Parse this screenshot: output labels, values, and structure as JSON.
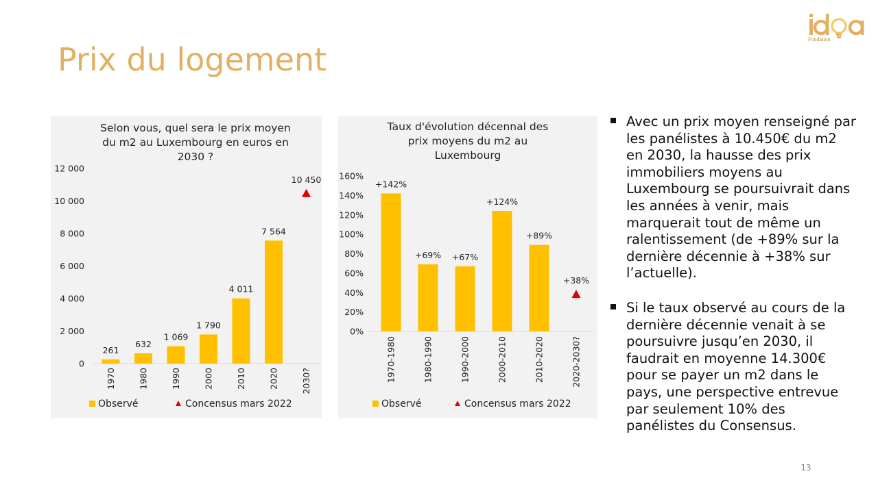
{
  "slide": {
    "title": "Prix du logement",
    "page_number": "13",
    "logo": {
      "word": "idea",
      "subtitle": "Fondation"
    }
  },
  "colors": {
    "bar": "#FFC000",
    "marker": "#E00000",
    "title": "#E1B063",
    "panel": "#F2F2F2"
  },
  "bullets": [
    "Avec un prix moyen renseigné par les panélistes à 10.450€ du m2 en 2030, la hausse des prix immobiliers moyens au Luxembourg se poursuivrait dans les années à venir, mais marquerait tout de même un ralentissement (de +89% sur la dernière décennie à +38% sur l’actuelle).",
    "Si le taux observé au cours de la dernière décennie venait à se poursuivre jusqu’en 2030, il faudrait en moyenne 14.300€ pour se payer un m2 dans le pays, une perspective entrevue par seulement 10% des panélistes du Consensus."
  ],
  "chart_data": [
    {
      "type": "bar",
      "title_lines": [
        "Selon vous, quel sera le prix moyen",
        "du m2 au Luxembourg en euros en",
        "2030 ?"
      ],
      "categories": [
        "1970",
        "1980",
        "1990",
        "2000",
        "2010",
        "2020",
        "2030?"
      ],
      "series": [
        {
          "name": "Observé",
          "kind": "bar",
          "values": [
            261,
            632,
            1069,
            1790,
            4011,
            7564,
            null
          ],
          "labels": [
            "261",
            "632",
            "1 069",
            "1 790",
            "4 011",
            "7 564",
            ""
          ]
        },
        {
          "name": "Concensus mars 2022",
          "kind": "marker",
          "values": [
            null,
            null,
            null,
            null,
            null,
            null,
            10450
          ],
          "labels": [
            "",
            "",
            "",
            "",
            "",
            "",
            "10 450"
          ]
        }
      ],
      "ylim": [
        0,
        12000
      ],
      "yticks": [
        {
          "value": 0,
          "label": "0"
        },
        {
          "value": 2000,
          "label": "2 000"
        },
        {
          "value": 4000,
          "label": "4 000"
        },
        {
          "value": 6000,
          "label": "6 000"
        },
        {
          "value": 8000,
          "label": "8 000"
        },
        {
          "value": 10000,
          "label": "10 000"
        },
        {
          "value": 12000,
          "label": "12 000"
        }
      ],
      "legend": [
        "Observé",
        "Concensus mars 2022"
      ],
      "legend_position": "bottom",
      "grid": false
    },
    {
      "type": "bar",
      "title_lines": [
        "Taux d'évolution décennal des",
        "prix moyens du m2 au",
        "Luxembourg"
      ],
      "categories": [
        "1970-1980",
        "1980-1990",
        "1990-2000",
        "2000-2010",
        "2010-2020",
        "2020-2030?"
      ],
      "series": [
        {
          "name": "Observé",
          "kind": "bar",
          "values": [
            142,
            69,
            67,
            124,
            89,
            null
          ],
          "labels": [
            "+142%",
            "+69%",
            "+67%",
            "+124%",
            "+89%",
            ""
          ]
        },
        {
          "name": "Concensus mars 2022",
          "kind": "marker",
          "values": [
            null,
            null,
            null,
            null,
            null,
            38
          ],
          "labels": [
            "",
            "",
            "",
            "",
            "",
            "+38%"
          ]
        }
      ],
      "ylim": [
        0,
        160
      ],
      "yticks": [
        {
          "value": 0,
          "label": "0%"
        },
        {
          "value": 20,
          "label": "20%"
        },
        {
          "value": 40,
          "label": "40%"
        },
        {
          "value": 60,
          "label": "60%"
        },
        {
          "value": 80,
          "label": "80%"
        },
        {
          "value": 100,
          "label": "100%"
        },
        {
          "value": 120,
          "label": "120%"
        },
        {
          "value": 140,
          "label": "140%"
        },
        {
          "value": 160,
          "label": "160%"
        }
      ],
      "legend": [
        "Observé",
        "Concensus mars 2022"
      ],
      "legend_position": "bottom",
      "grid": false
    }
  ]
}
